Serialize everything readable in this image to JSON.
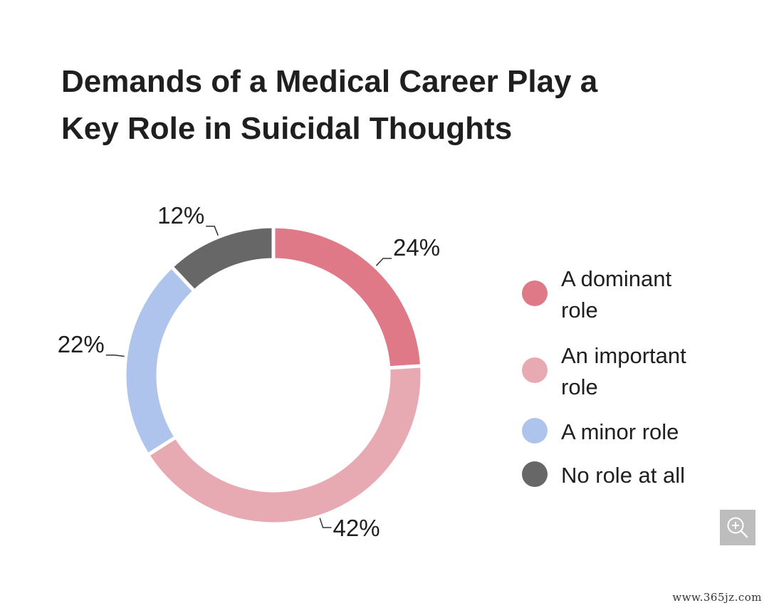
{
  "chart_data": {
    "type": "pie",
    "title": "Demands of a Medical Career Play a Key Role in Suicidal Thoughts",
    "title_lines": [
      "Demands of a Medical Career Play a",
      "Key Role in Suicidal Thoughts"
    ],
    "donut": true,
    "categories": [
      "A dominant role",
      "An important role",
      "A minor role",
      "No role at all"
    ],
    "legend_lines": [
      [
        "A dominant",
        "role"
      ],
      [
        "An important",
        "role"
      ],
      [
        "A minor role"
      ],
      [
        "No role at all"
      ]
    ],
    "values": [
      24,
      42,
      22,
      12
    ],
    "value_labels": [
      "24%",
      "42%",
      "22%",
      "12%"
    ],
    "colors": [
      "#e07987",
      "#e8aab2",
      "#aec4ec",
      "#676767"
    ],
    "legend_position": "right"
  },
  "zoom_icon": "zoom-in-icon",
  "watermark": "www.365jz.com"
}
